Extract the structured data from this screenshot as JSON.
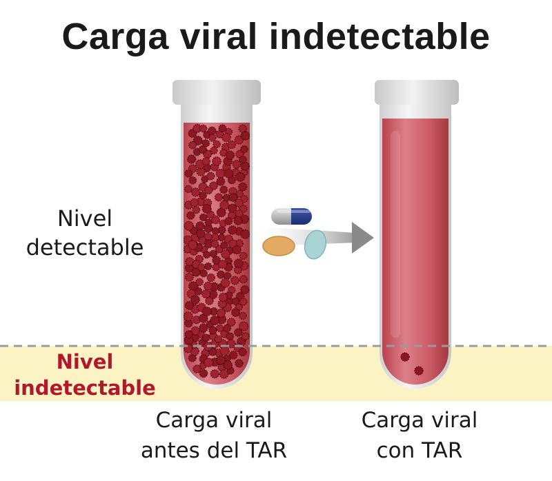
{
  "title": "Carga viral indetectable",
  "labels": {
    "detectable": [
      "Nivel",
      "detectable"
    ],
    "undetectable": [
      "Nivel",
      "indetectable"
    ]
  },
  "tubes": {
    "before": {
      "caption": [
        "Carga viral",
        "antes del TAR"
      ]
    },
    "after": {
      "caption": [
        "Carga viral",
        "con TAR"
      ]
    }
  },
  "colors": {
    "blood": "#c9545f",
    "virus": "#8e1622",
    "undetectable_band": "#fbf3c4",
    "undetectable_text": "#b0182c",
    "threshold_line": "#9a9a9a",
    "arrow": "#8a8a8a"
  },
  "icons": [
    "capsule-icon",
    "round-tablet-icon",
    "oval-tablet-icon",
    "arrow-right-icon",
    "virus-particle-icon"
  ]
}
